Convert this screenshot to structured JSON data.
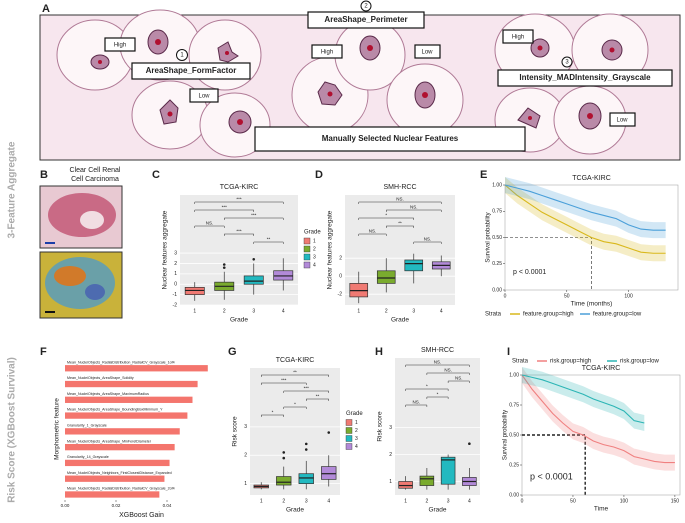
{
  "panel_labels": [
    "A",
    "B",
    "C",
    "D",
    "E",
    "F",
    "G",
    "H",
    "I"
  ],
  "side_labels": [
    "3-Feature Aggregate",
    "Risk Score (XGBoost Survival)"
  ],
  "panel_a": {
    "features": [
      {
        "number": "1",
        "name": "AreaShape_FormFactor",
        "high": "High",
        "low": "Low"
      },
      {
        "number": "2",
        "name": "AreaShape_Perimeter",
        "high": "High",
        "low": "Low"
      },
      {
        "number": "3",
        "name": "Intensity_MADIntensity_Grayscale",
        "high": "High",
        "low": "Low"
      }
    ],
    "caption": "Manually Selected Nuclear Features"
  },
  "panel_b": {
    "title": [
      "Clear Cell Renal",
      "Cell Carcinoma"
    ]
  },
  "chart_data": [
    {
      "type": "box",
      "title": "TCGA-KIRC",
      "x_label": "Grade",
      "y_label": "Nuclear features aggregate",
      "categories": [
        "1",
        "2",
        "3",
        "4"
      ],
      "colors": [
        "#f07a73",
        "#7aab2e",
        "#22b9c0",
        "#b28ad8"
      ],
      "legend_title": "Grade",
      "boxes": [
        {
          "lo": -1.6,
          "q1": -1.0,
          "median": -0.6,
          "q3": -0.3,
          "hi": 0.2,
          "outliers": []
        },
        {
          "lo": -1.5,
          "q1": -0.6,
          "median": -0.2,
          "q3": 0.2,
          "hi": 1.2,
          "outliers": [
            1.6,
            1.9
          ]
        },
        {
          "lo": -1.0,
          "q1": 0.0,
          "median": 0.3,
          "q3": 0.8,
          "hi": 2.0,
          "outliers": [
            2.4
          ]
        },
        {
          "lo": -0.6,
          "q1": 0.4,
          "median": 0.8,
          "q3": 1.3,
          "hi": 2.5,
          "outliers": []
        }
      ],
      "ylim": [
        -2,
        3.2
      ],
      "yticks": [
        -2,
        -1,
        0,
        1,
        2,
        3
      ],
      "comparisons": [
        {
          "groups": [
            "1",
            "4"
          ],
          "label": "***"
        },
        {
          "groups": [
            "1",
            "3"
          ],
          "label": "***"
        },
        {
          "groups": [
            "2",
            "4"
          ],
          "label": "***"
        },
        {
          "groups": [
            "1",
            "2"
          ],
          "label": "NS."
        },
        {
          "groups": [
            "2",
            "3"
          ],
          "label": "***"
        },
        {
          "groups": [
            "3",
            "4"
          ],
          "label": "**"
        }
      ]
    },
    {
      "type": "box",
      "title": "SMH-RCC",
      "x_label": "Grade",
      "y_label": "Nuclear features aggregate",
      "categories": [
        "1",
        "2",
        "3",
        "4"
      ],
      "colors": [
        "#f07a73",
        "#7aab2e",
        "#22b9c0",
        "#b28ad8"
      ],
      "boxes": [
        {
          "lo": -3.0,
          "q1": -2.3,
          "median": -1.6,
          "q3": -0.8,
          "hi": 0.5,
          "outliers": []
        },
        {
          "lo": -1.8,
          "q1": -0.8,
          "median": -0.2,
          "q3": 0.6,
          "hi": 2.0,
          "outliers": []
        },
        {
          "lo": -0.8,
          "q1": 0.6,
          "median": 1.4,
          "q3": 1.8,
          "hi": 2.5,
          "outliers": []
        },
        {
          "lo": 0.0,
          "q1": 0.8,
          "median": 1.2,
          "q3": 1.6,
          "hi": 2.3,
          "outliers": []
        }
      ],
      "ylim": [
        -3.2,
        2.8
      ],
      "yticks": [
        -2,
        0,
        2
      ],
      "comparisons": [
        {
          "groups": [
            "1",
            "4"
          ],
          "label": "NS."
        },
        {
          "groups": [
            "2",
            "4"
          ],
          "label": "NS."
        },
        {
          "groups": [
            "1",
            "3"
          ],
          "label": "*"
        },
        {
          "groups": [
            "2",
            "3"
          ],
          "label": "**"
        },
        {
          "groups": [
            "1",
            "2"
          ],
          "label": "NS."
        },
        {
          "groups": [
            "3",
            "4"
          ],
          "label": "NS."
        }
      ]
    },
    {
      "type": "km",
      "title": "TCGA-KIRC",
      "x_label": "Time (months)",
      "y_label": "Survival probability",
      "legend_title": "Strata",
      "p_value": "p < 0.0001",
      "median_survival": 0.5,
      "median_time": 70,
      "series": [
        {
          "name": "feature.group=high",
          "color": "#d9b81c",
          "x": [
            0,
            10,
            20,
            30,
            40,
            50,
            60,
            70,
            80,
            90,
            100,
            110,
            120,
            130
          ],
          "values": [
            1,
            0.9,
            0.82,
            0.74,
            0.68,
            0.62,
            0.56,
            0.5,
            0.46,
            0.44,
            0.4,
            0.36,
            0.35,
            0.35
          ]
        },
        {
          "name": "feature.group=low",
          "color": "#4a9fd9",
          "x": [
            0,
            10,
            20,
            30,
            40,
            50,
            60,
            70,
            80,
            90,
            100,
            110,
            120,
            130
          ],
          "values": [
            1,
            0.97,
            0.94,
            0.9,
            0.86,
            0.82,
            0.78,
            0.74,
            0.71,
            0.68,
            0.62,
            0.58,
            0.57,
            0.57
          ]
        }
      ],
      "xlim": [
        0,
        140
      ],
      "xticks": [
        0,
        50,
        100
      ],
      "ylim": [
        0,
        1
      ],
      "yticks": [
        {
          "value": 0,
          "label": "0.00"
        },
        {
          "value": 0.25,
          "label": "0.25"
        },
        {
          "value": 0.5,
          "label": "0.50"
        },
        {
          "value": 0.75,
          "label": "0.75"
        },
        {
          "value": 1,
          "label": "1.00"
        }
      ]
    },
    {
      "type": "hbar",
      "x_label": "XGBoost Gain",
      "y_label": "Morphometric feature",
      "color": "#f4756d",
      "categories": [
        "Mean_NucleiObjects_RadialDistribution_RadialCV_Grayscale_1of4",
        "Mean_NucleiObjects_AreaShape_Solidity",
        "Mean_NucleiObjects_AreaShape_MaximumRadius",
        "Mean_NucleiObjects_AreaShape_BoundingBoxMinimum_Y",
        "Granularity_1_Grayscale",
        "Mean_NucleiObjects_AreaShape_MinFeretDiameter",
        "Granularity_14_Grayscale",
        "Mean_NucleiObjects_Neighbors_FirstClosestDistance_Expanded",
        "Mean_NucleiObjects_RadialDistribution_RadialCV_Grayscale_2of4"
      ],
      "values": [
        0.056,
        0.052,
        0.05,
        0.048,
        0.045,
        0.043,
        0.041,
        0.039,
        0.037
      ],
      "xlim": [
        0,
        0.06
      ],
      "xticks": [
        {
          "value": 0,
          "label": "0.00"
        },
        {
          "value": 0.02,
          "label": "0.02"
        },
        {
          "value": 0.04,
          "label": "0.04"
        }
      ]
    },
    {
      "type": "box",
      "title": "TCGA-KIRC",
      "x_label": "Grade",
      "y_label": "Risk score",
      "categories": [
        "1",
        "2",
        "3",
        "4"
      ],
      "colors": [
        "#f07a73",
        "#7aab2e",
        "#22b9c0",
        "#b28ad8"
      ],
      "legend_title": "Grade",
      "boxes": [
        {
          "lo": 0.8,
          "q1": 0.85,
          "median": 0.9,
          "q3": 0.95,
          "hi": 1.05,
          "outliers": []
        },
        {
          "lo": 0.8,
          "q1": 0.95,
          "median": 1.05,
          "q3": 1.25,
          "hi": 1.6,
          "outliers": [
            1.9,
            2.1
          ]
        },
        {
          "lo": 0.8,
          "q1": 1.0,
          "median": 1.2,
          "q3": 1.35,
          "hi": 1.8,
          "outliers": [
            2.2,
            2.4
          ]
        },
        {
          "lo": 0.9,
          "q1": 1.15,
          "median": 1.35,
          "q3": 1.6,
          "hi": 2.0,
          "outliers": [
            2.8
          ]
        }
      ],
      "ylim": [
        0.6,
        3.1
      ],
      "yticks": [
        1,
        2,
        3
      ],
      "comparisons": [
        {
          "groups": [
            "1",
            "4"
          ],
          "label": "**"
        },
        {
          "groups": [
            "1",
            "3"
          ],
          "label": "***"
        },
        {
          "groups": [
            "2",
            "4"
          ],
          "label": "***"
        },
        {
          "groups": [
            "3",
            "4"
          ],
          "label": "**"
        },
        {
          "groups": [
            "2",
            "3"
          ],
          "label": "*"
        },
        {
          "groups": [
            "1",
            "2"
          ],
          "label": "*"
        }
      ]
    },
    {
      "type": "box",
      "title": "SMH-RCC",
      "x_label": "Grade",
      "y_label": "Risk score",
      "categories": [
        "1",
        "2",
        "3",
        "4"
      ],
      "colors": [
        "#f07a73",
        "#7aab2e",
        "#22b9c0",
        "#b28ad8"
      ],
      "boxes": [
        {
          "lo": 0.7,
          "q1": 0.75,
          "median": 0.85,
          "q3": 1.0,
          "hi": 1.2,
          "outliers": []
        },
        {
          "lo": 0.7,
          "q1": 0.85,
          "median": 1.1,
          "q3": 1.2,
          "hi": 1.5,
          "outliers": []
        },
        {
          "lo": 0.7,
          "q1": 0.9,
          "median": 1.8,
          "q3": 1.9,
          "hi": 2.0,
          "outliers": []
        },
        {
          "lo": 0.7,
          "q1": 0.85,
          "median": 1.0,
          "q3": 1.15,
          "hi": 1.5,
          "outliers": [
            2.4
          ]
        }
      ],
      "ylim": [
        0.5,
        3.5
      ],
      "yticks": [
        1,
        2,
        3
      ],
      "comparisons": [
        {
          "groups": [
            "1",
            "4"
          ],
          "label": "NS."
        },
        {
          "groups": [
            "2",
            "4"
          ],
          "label": "NS."
        },
        {
          "groups": [
            "3",
            "4"
          ],
          "label": "NS."
        },
        {
          "groups": [
            "1",
            "3"
          ],
          "label": "*"
        },
        {
          "groups": [
            "2",
            "3"
          ],
          "label": "*"
        },
        {
          "groups": [
            "1",
            "2"
          ],
          "label": "NS."
        }
      ]
    },
    {
      "type": "km",
      "title": "TCGA-KIRC",
      "x_label": "Time",
      "y_label": "Survival probability",
      "legend_title": "Strata",
      "p_value": "p < 0.0001",
      "median_survival": 0.5,
      "median_time": 62,
      "legend_top": true,
      "series": [
        {
          "name": "risk.group=high",
          "color": "#f08080",
          "x": [
            0,
            10,
            20,
            30,
            40,
            50,
            60,
            70,
            80,
            90,
            100,
            110,
            120,
            130,
            140,
            150
          ],
          "values": [
            1,
            0.88,
            0.78,
            0.68,
            0.6,
            0.53,
            0.5,
            0.45,
            0.42,
            0.4,
            0.37,
            0.32,
            0.3,
            0.28,
            0.27,
            0.27
          ]
        },
        {
          "name": "risk.group=low",
          "color": "#2cb5b5",
          "x": [
            0,
            10,
            20,
            30,
            40,
            50,
            60,
            70,
            80,
            90,
            100,
            110,
            120
          ],
          "values": [
            1,
            0.98,
            0.96,
            0.93,
            0.9,
            0.87,
            0.84,
            0.8,
            0.77,
            0.74,
            0.7,
            0.62,
            0.6
          ]
        }
      ],
      "xlim": [
        0,
        155
      ],
      "xticks": [
        0,
        50,
        100,
        150
      ],
      "ylim": [
        0,
        1
      ],
      "yticks": [
        {
          "value": 0,
          "label": "0.00"
        },
        {
          "value": 0.25,
          "label": "0.25"
        },
        {
          "value": 0.5,
          "label": "0.50"
        },
        {
          "value": 0.75,
          "label": "0.75"
        },
        {
          "value": 1,
          "label": "1.00"
        }
      ]
    }
  ]
}
